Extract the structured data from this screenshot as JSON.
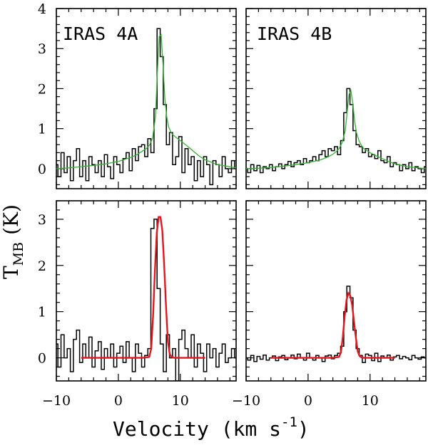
{
  "chart_data": {
    "type": "line",
    "xlabel": "Velocity (km s",
    "xlabel_exponent": "-1",
    "xlabel_close": ")",
    "ylabel_symbol": "T",
    "ylabel_subscript": "MB",
    "ylabel_unit": "(K)",
    "xlim": [
      -10,
      19
    ],
    "x_ticks": [
      -10,
      0,
      10
    ],
    "x_tick_labels": [
      "−10",
      "0",
      "10"
    ],
    "colors": {
      "data": "#000000",
      "top_fit": "#2db82d",
      "bottom_fit": "#e8141b"
    },
    "panels": [
      {
        "id": "top-left",
        "title": "IRAS 4A",
        "ylim": [
          -0.5,
          4
        ],
        "y_ticks": [
          0,
          1,
          2,
          3,
          4
        ],
        "y_tick_labels": [
          "0",
          "1",
          "2",
          "3",
          "4"
        ],
        "series": [
          {
            "name": "observed",
            "style": "step",
            "color": "#000000",
            "x": [
              -10,
              -9.5,
              -9,
              -8.5,
              -8,
              -7.5,
              -7,
              -6.5,
              -6,
              -5.5,
              -5,
              -4.5,
              -4,
              -3.5,
              -3,
              -2.5,
              -2,
              -1.5,
              -1,
              -0.5,
              0,
              0.5,
              1,
              1.5,
              2,
              2.5,
              3,
              3.5,
              4,
              4.5,
              5,
              5.5,
              6,
              6.5,
              7,
              7.5,
              8,
              8.5,
              9,
              9.5,
              10,
              10.5,
              11,
              11.5,
              12,
              12.5,
              13,
              13.5,
              14,
              14.5,
              15,
              15.5,
              16,
              16.5,
              17,
              17.5,
              18,
              18.5,
              19
            ],
            "y": [
              0.1,
              -0.2,
              0.4,
              -0.1,
              0.3,
              -0.3,
              0.2,
              0.5,
              -0.2,
              0.2,
              -0.3,
              0.3,
              0.1,
              -0.1,
              0.2,
              -0.2,
              0.35,
              0.05,
              -0.25,
              0.3,
              0.1,
              -0.1,
              0.25,
              0.4,
              -0.05,
              0.5,
              0.2,
              0.55,
              0.6,
              0.3,
              0.75,
              0.4,
              1.5,
              3.5,
              2.8,
              1.6,
              0.6,
              0.9,
              0.1,
              0.3,
              0.8,
              -0.1,
              0.5,
              0.1,
              0.3,
              -0.3,
              0.2,
              -0.2,
              0.3,
              0.1,
              -0.4,
              0.2,
              0.1,
              -0.2,
              0.3,
              0.0,
              -0.1,
              0.2,
              0.0
            ]
          },
          {
            "name": "fit",
            "style": "line",
            "color": "#2db82d",
            "x": [
              -10,
              -8,
              -6,
              -4,
              -2,
              0,
              2,
              3,
              4,
              4.5,
              5,
              5.5,
              6,
              6.3,
              6.6,
              6.9,
              7.2,
              7.5,
              7.8,
              8.1,
              8.5,
              9,
              10,
              11,
              12,
              13,
              14,
              16,
              19
            ],
            "y": [
              0,
              0.02,
              0.05,
              0.08,
              0.12,
              0.18,
              0.28,
              0.35,
              0.45,
              0.5,
              0.58,
              0.75,
              1.3,
              2.4,
              3.3,
              3.35,
              2.6,
              1.75,
              1.3,
              1.05,
              0.9,
              0.82,
              0.7,
              0.58,
              0.45,
              0.32,
              0.22,
              0.1,
              0.02
            ]
          }
        ]
      },
      {
        "id": "top-right",
        "title": "IRAS 4B",
        "ylim": [
          -0.5,
          4
        ],
        "y_ticks": [
          0,
          1,
          2,
          3,
          4
        ],
        "y_tick_labels": [],
        "series": [
          {
            "name": "observed",
            "style": "step",
            "color": "#000000",
            "x": [
              -10,
              -9.5,
              -9,
              -8.5,
              -8,
              -7.5,
              -7,
              -6.5,
              -6,
              -5.5,
              -5,
              -4.5,
              -4,
              -3.5,
              -3,
              -2.5,
              -2,
              -1.5,
              -1,
              -0.5,
              0,
              0.5,
              1,
              1.5,
              2,
              2.5,
              3,
              3.5,
              4,
              4.5,
              5,
              5.5,
              6,
              6.5,
              7,
              7.5,
              8,
              8.5,
              9,
              9.5,
              10,
              10.5,
              11,
              11.5,
              12,
              12.5,
              13,
              13.5,
              14,
              14.5,
              15,
              15.5,
              16,
              16.5,
              17,
              17.5,
              18,
              18.5,
              19
            ],
            "y": [
              0.0,
              -0.1,
              0.1,
              -0.05,
              0.08,
              -0.1,
              0.05,
              0.0,
              0.1,
              -0.05,
              0.05,
              0.12,
              0.0,
              0.1,
              0.18,
              0.05,
              0.15,
              0.2,
              0.1,
              0.25,
              0.15,
              0.2,
              0.3,
              0.2,
              0.35,
              0.45,
              0.3,
              0.5,
              0.45,
              0.55,
              0.35,
              0.7,
              1.4,
              2.0,
              1.6,
              0.95,
              0.6,
              0.55,
              0.4,
              0.5,
              0.3,
              0.35,
              0.25,
              0.45,
              0.2,
              0.15,
              0.3,
              0.05,
              0.15,
              0.1,
              -0.05,
              0.1,
              0.0,
              0.15,
              -0.05,
              0.05,
              0.0,
              -0.1,
              0.05
            ]
          },
          {
            "name": "fit",
            "style": "line",
            "color": "#2db82d",
            "x": [
              -10,
              -8,
              -6,
              -4,
              -2,
              0,
              2,
              3,
              4,
              4.5,
              5,
              5.5,
              6,
              6.3,
              6.6,
              6.9,
              7.2,
              7.5,
              7.8,
              8.2,
              8.6,
              9,
              10,
              11,
              12,
              13,
              14,
              16,
              19
            ],
            "y": [
              0,
              0.01,
              0.03,
              0.06,
              0.1,
              0.15,
              0.22,
              0.28,
              0.36,
              0.42,
              0.5,
              0.65,
              0.95,
              1.4,
              1.85,
              1.95,
              1.65,
              1.2,
              0.9,
              0.7,
              0.58,
              0.5,
              0.4,
              0.32,
              0.25,
              0.18,
              0.12,
              0.05,
              0.0
            ]
          }
        ]
      },
      {
        "id": "bottom-left",
        "title": "",
        "ylim": [
          -0.5,
          3.4
        ],
        "y_ticks": [
          0,
          1,
          2,
          3
        ],
        "y_tick_labels": [
          "0",
          "1",
          "2",
          "3"
        ],
        "series": [
          {
            "name": "observed",
            "style": "step",
            "color": "#000000",
            "x": [
              -10,
              -9.5,
              -9,
              -8.5,
              -8,
              -7.5,
              -7,
              -6.5,
              -6,
              -5.5,
              -5,
              -4.5,
              -4,
              -3.5,
              -3,
              -2.5,
              -2,
              -1.5,
              -1,
              -0.5,
              0,
              0.5,
              1,
              1.5,
              2,
              2.5,
              3,
              3.5,
              4,
              4.5,
              5,
              5.5,
              6,
              6.5,
              7,
              7.5,
              8,
              8.5,
              9,
              9.5,
              10,
              10.5,
              11,
              11.5,
              12,
              12.5,
              13,
              13.5,
              14,
              14.5,
              15,
              15.5,
              16,
              16.5,
              17,
              17.5,
              18,
              18.5,
              19
            ],
            "y": [
              0.3,
              -0.2,
              0.5,
              0.0,
              0.2,
              -0.3,
              0.4,
              0.6,
              -0.1,
              0.3,
              0.0,
              0.45,
              -0.2,
              0.15,
              0.35,
              -0.25,
              0.2,
              0.0,
              0.3,
              -0.2,
              0.1,
              0.25,
              -0.1,
              0.35,
              0.0,
              -0.3,
              0.3,
              0.1,
              -0.2,
              0.05,
              0.2,
              2.8,
              3.0,
              1.5,
              0.3,
              -0.3,
              0.5,
              0.0,
              0.2,
              -0.5,
              0.4,
              0.6,
              0.2,
              0.0,
              0.5,
              -0.2,
              0.3,
              0.1,
              -0.3,
              0.3,
              0.0,
              0.2,
              -0.2,
              0.1,
              0.3,
              -0.1,
              0.0,
              0.2,
              0.0
            ]
          },
          {
            "name": "fit",
            "style": "line",
            "color": "#e8141b",
            "x": [
              -6,
              4,
              5,
              5.3,
              5.6,
              5.9,
              6.2,
              6.5,
              6.8,
              7.1,
              7.4,
              7.7,
              8.0,
              8.3,
              8.6,
              9,
              10,
              14
            ],
            "y": [
              0,
              0,
              0.02,
              0.2,
              0.9,
              1.9,
              2.7,
              3.05,
              3.05,
              2.75,
              2.0,
              1.1,
              0.35,
              0.08,
              0.02,
              0,
              0,
              0
            ]
          }
        ]
      },
      {
        "id": "bottom-right",
        "title": "",
        "ylim": [
          -0.5,
          3.4
        ],
        "y_ticks": [
          0,
          1,
          2,
          3
        ],
        "y_tick_labels": [],
        "series": [
          {
            "name": "observed",
            "style": "step",
            "color": "#000000",
            "x": [
              -10,
              -9.5,
              -9,
              -8.5,
              -8,
              -7.5,
              -7,
              -6.5,
              -6,
              -5.5,
              -5,
              -4.5,
              -4,
              -3.5,
              -3,
              -2.5,
              -2,
              -1.5,
              -1,
              -0.5,
              0,
              0.5,
              1,
              1.5,
              2,
              2.5,
              3,
              3.5,
              4,
              4.5,
              5,
              5.5,
              6,
              6.5,
              7,
              7.5,
              8,
              8.5,
              9,
              9.5,
              10,
              10.5,
              11,
              11.5,
              12,
              12.5,
              13,
              13.5,
              14,
              14.5,
              15,
              15.5,
              16,
              16.5,
              17,
              17.5,
              18,
              18.5,
              19
            ],
            "y": [
              0.0,
              -0.05,
              0.05,
              -0.08,
              0.03,
              -0.03,
              0.06,
              -0.05,
              0.0,
              0.04,
              -0.06,
              0.02,
              0.05,
              -0.04,
              0.0,
              0.06,
              -0.02,
              0.08,
              0.0,
              -0.05,
              0.1,
              0.0,
              -0.05,
              0.05,
              0.0,
              -0.08,
              0.04,
              0.06,
              -0.02,
              0.05,
              0.1,
              0.25,
              1.0,
              1.55,
              1.3,
              0.6,
              0.2,
              0.05,
              -0.1,
              0.08,
              0.05,
              -0.06,
              0.1,
              -0.08,
              0.04,
              0.0,
              0.06,
              -0.05,
              0.02,
              0.05,
              -0.02,
              0.03,
              0.0,
              -0.04,
              0.05,
              0.0,
              -0.03,
              0.02,
              0.0
            ]
          },
          {
            "name": "fit",
            "style": "line",
            "color": "#e8141b",
            "x": [
              -6,
              4,
              5,
              5.3,
              5.6,
              5.9,
              6.2,
              6.5,
              6.8,
              7.1,
              7.4,
              7.7,
              8.0,
              8.3,
              8.6,
              9,
              10,
              14
            ],
            "y": [
              0,
              0,
              0.02,
              0.12,
              0.45,
              0.9,
              1.25,
              1.4,
              1.35,
              1.15,
              0.8,
              0.45,
              0.15,
              0.04,
              0.01,
              0,
              0,
              0
            ]
          }
        ]
      }
    ]
  }
}
